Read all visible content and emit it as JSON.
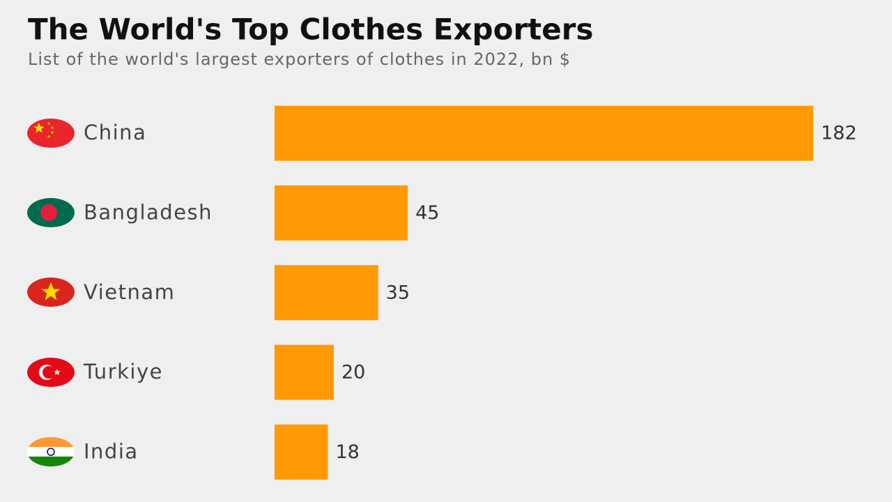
{
  "chart_data": {
    "type": "bar",
    "orientation": "horizontal",
    "title": "The World's Top Clothes Exporters",
    "subtitle": "List of the world's largest exporters of clothes in 2022, bn $",
    "categories": [
      "China",
      "Bangladesh",
      "Vietnam",
      "Turkiye",
      "India"
    ],
    "values": [
      182,
      45,
      35,
      20,
      18
    ],
    "color": "#ff9a05"
  }
}
